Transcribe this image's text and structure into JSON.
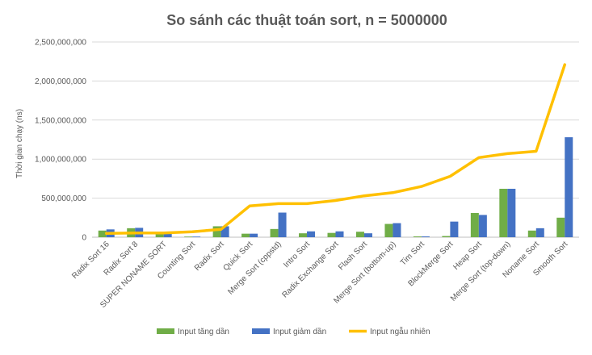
{
  "chart_data": {
    "type": "bar",
    "title": "So sánh các thuật toán sort, n = 5000000",
    "xlabel": "",
    "ylabel": "Thời gian chạy (ns)",
    "ylim": [
      0,
      2500000000
    ],
    "yticks": [
      0,
      500000000,
      1000000000,
      1500000000,
      2000000000,
      2500000000
    ],
    "ytick_labels": [
      "0",
      "500,000,000",
      "1,000,000,000",
      "1,500,000,000",
      "2,000,000,000",
      "2,500,000,000"
    ],
    "grid": true,
    "legend_position": "bottom",
    "categories": [
      "Radix Sort 16",
      "Radix Sort 8",
      "SUPER NONAME SORT",
      "Counting Sort",
      "Radix Sort",
      "Quick Sort",
      "Merge Sort (cppstd)",
      "Intro Sort",
      "Radix Exchange Sort",
      "Flash Sort",
      "Merge Sort (bottom-up)",
      "Tim Sort",
      "BlockMerge Sort",
      "Heap Sort",
      "Merge Sort (top-down)",
      "Noname Sort",
      "Smooth Sort"
    ],
    "series": [
      {
        "name": "Input tăng dần",
        "type": "bar",
        "color": "#70ad47",
        "values": [
          85000000,
          115000000,
          60000000,
          8000000,
          140000000,
          45000000,
          105000000,
          50000000,
          55000000,
          70000000,
          170000000,
          10000000,
          15000000,
          310000000,
          620000000,
          85000000,
          250000000
        ]
      },
      {
        "name": "Input giảm dần",
        "type": "bar",
        "color": "#4472c4",
        "values": [
          100000000,
          120000000,
          60000000,
          8000000,
          140000000,
          45000000,
          315000000,
          75000000,
          75000000,
          50000000,
          180000000,
          10000000,
          200000000,
          285000000,
          620000000,
          115000000,
          1280000000
        ]
      },
      {
        "name": "Input ngẫu nhiên",
        "type": "line",
        "color": "#ffc000",
        "values": [
          50000000,
          55000000,
          55000000,
          70000000,
          100000000,
          400000000,
          430000000,
          430000000,
          470000000,
          530000000,
          570000000,
          650000000,
          780000000,
          1020000000,
          1070000000,
          1100000000,
          2210000000
        ]
      }
    ]
  }
}
